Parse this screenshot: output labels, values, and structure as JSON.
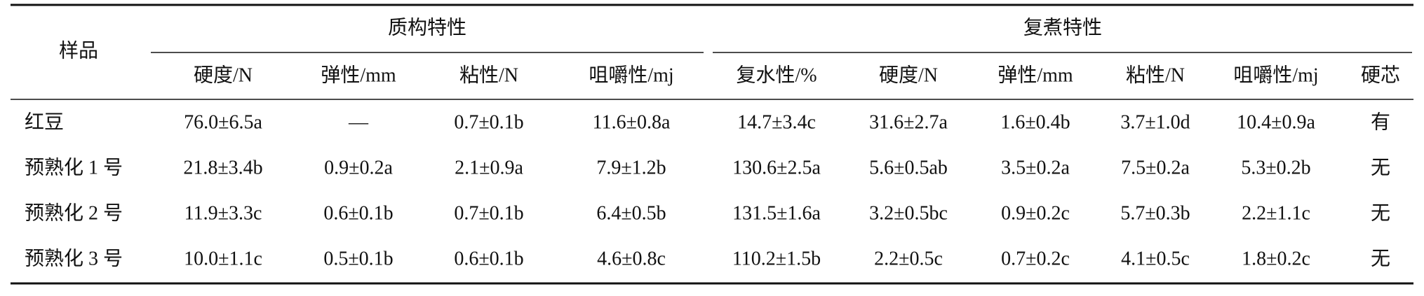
{
  "table": {
    "header": {
      "sample": "样品",
      "groups": [
        {
          "label": "质构特性",
          "columns": [
            "硬度/N",
            "弹性/mm",
            "粘性/N",
            "咀嚼性/mj"
          ]
        },
        {
          "label": "复煮特性",
          "columns": [
            "复水性/%",
            "硬度/N",
            "弹性/mm",
            "粘性/N",
            "咀嚼性/mj",
            "硬芯"
          ]
        }
      ]
    },
    "rows": [
      [
        "红豆",
        "76.0±6.5a",
        "—",
        "0.7±0.1b",
        "11.6±0.8a",
        "14.7±3.4c",
        "31.6±2.7a",
        "1.6±0.4b",
        "3.7±1.0d",
        "10.4±0.9a",
        "有"
      ],
      [
        "预熟化 1 号",
        "21.8±3.4b",
        "0.9±0.2a",
        "2.1±0.9a",
        "7.9±1.2b",
        "130.6±2.5a",
        "5.6±0.5ab",
        "3.5±0.2a",
        "7.5±0.2a",
        "5.3±0.2b",
        "无"
      ],
      [
        "预熟化 2 号",
        "11.9±3.3c",
        "0.6±0.1b",
        "0.7±0.1b",
        "6.4±0.5b",
        "131.5±1.6a",
        "3.2±0.5bc",
        "0.9±0.2c",
        "5.7±0.3b",
        "2.2±1.1c",
        "无"
      ],
      [
        "预熟化 3 号",
        "10.0±1.1c",
        "0.5±0.1b",
        "0.6±0.1b",
        "4.6±0.8c",
        "110.2±1.5b",
        "2.2±0.5c",
        "0.7±0.2c",
        "4.1±0.5c",
        "1.8±0.2c",
        "无"
      ]
    ]
  }
}
